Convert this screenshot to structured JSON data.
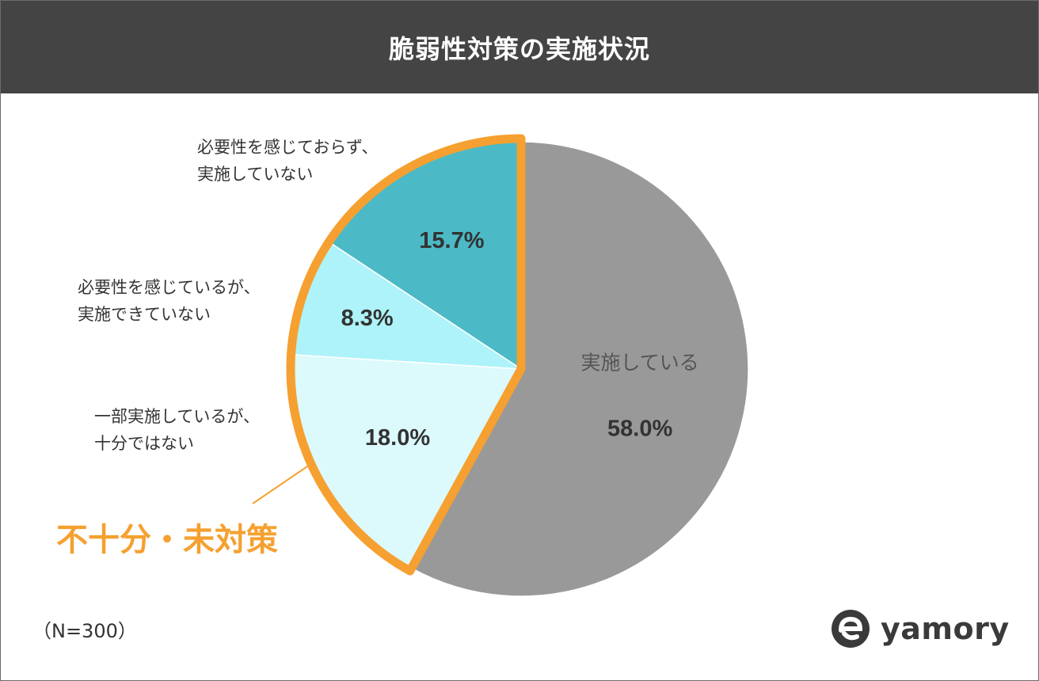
{
  "title": "脆弱性対策の実施状況",
  "chart_data": {
    "type": "pie",
    "slices": [
      {
        "label": "実施している",
        "value": 58.0,
        "value_text": "58.0%",
        "color": "#999999"
      },
      {
        "label_lines": [
          "一部実施しているが、",
          "十分ではない"
        ],
        "value": 18.0,
        "value_text": "18.0%",
        "color": "#dcf9fc"
      },
      {
        "label_lines": [
          "必要性を感じているが、",
          "実施できていない"
        ],
        "value": 8.3,
        "value_text": "8.3%",
        "color": "#adf3f9"
      },
      {
        "label_lines": [
          "必要性を感じておらず、",
          "実施していない"
        ],
        "value": 15.7,
        "value_text": "15.7%",
        "color": "#4bbac6"
      }
    ],
    "start": "12 o'clock",
    "direction": "clockwise",
    "highlight": {
      "label": "不十分・未対策",
      "color": "#f5a030",
      "slices": [
        1,
        2,
        3
      ]
    }
  },
  "note": "（N=300）",
  "logo": {
    "text": "yamory"
  }
}
